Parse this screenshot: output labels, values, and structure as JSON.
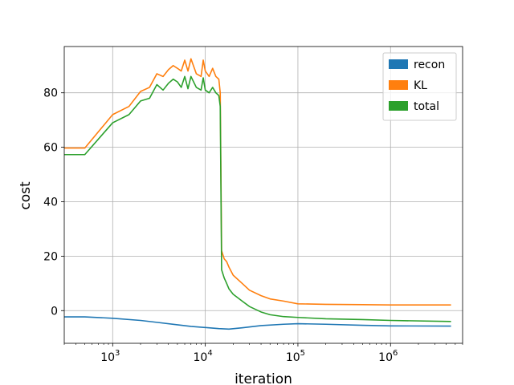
{
  "chart_data": {
    "type": "line",
    "title": "",
    "xlabel": "iteration",
    "ylabel": "cost",
    "xscale": "log",
    "xlim": [
      300,
      6000000
    ],
    "ylim": [
      -12,
      97
    ],
    "grid": true,
    "legend_position": "top-right",
    "x_ticks": [
      {
        "value": 1000,
        "base": "10",
        "exp": "3"
      },
      {
        "value": 10000,
        "base": "10",
        "exp": "4"
      },
      {
        "value": 100000,
        "base": "10",
        "exp": "5"
      },
      {
        "value": 1000000,
        "base": "10",
        "exp": "6"
      }
    ],
    "y_ticks": [
      0,
      20,
      40,
      60,
      80
    ],
    "series": [
      {
        "name": "recon",
        "color": "#1f77b4",
        "points": [
          [
            300,
            -2.3
          ],
          [
            500,
            -2.3
          ],
          [
            1000,
            -2.8
          ],
          [
            2000,
            -3.6
          ],
          [
            3000,
            -4.3
          ],
          [
            5000,
            -5.2
          ],
          [
            7000,
            -5.8
          ],
          [
            10000,
            -6.2
          ],
          [
            14000,
            -6.6
          ],
          [
            18000,
            -6.8
          ],
          [
            25000,
            -6.3
          ],
          [
            40000,
            -5.5
          ],
          [
            70000,
            -5.0
          ],
          [
            100000,
            -4.8
          ],
          [
            200000,
            -5.0
          ],
          [
            500000,
            -5.4
          ],
          [
            1000000,
            -5.6
          ],
          [
            4500000,
            -5.7
          ]
        ]
      },
      {
        "name": "KL",
        "color": "#ff7f0e",
        "points": [
          [
            300,
            59.7
          ],
          [
            500,
            59.7
          ],
          [
            1000,
            72
          ],
          [
            1500,
            75
          ],
          [
            2000,
            80.5
          ],
          [
            2500,
            82
          ],
          [
            3000,
            87
          ],
          [
            3500,
            86
          ],
          [
            4000,
            88.5
          ],
          [
            4500,
            90
          ],
          [
            5000,
            89
          ],
          [
            5500,
            88
          ],
          [
            6000,
            92
          ],
          [
            6500,
            88
          ],
          [
            7000,
            92.5
          ],
          [
            8000,
            87
          ],
          [
            9000,
            86
          ],
          [
            9500,
            92
          ],
          [
            10000,
            88
          ],
          [
            11000,
            86
          ],
          [
            12000,
            89
          ],
          [
            13000,
            86
          ],
          [
            14000,
            85
          ],
          [
            14500,
            80
          ],
          [
            15000,
            22
          ],
          [
            16000,
            19
          ],
          [
            17000,
            18
          ],
          [
            18000,
            16
          ],
          [
            20000,
            13
          ],
          [
            25000,
            10
          ],
          [
            30000,
            7.5
          ],
          [
            40000,
            5.5
          ],
          [
            50000,
            4.3
          ],
          [
            70000,
            3.5
          ],
          [
            100000,
            2.5
          ],
          [
            200000,
            2.3
          ],
          [
            500000,
            2.2
          ],
          [
            1000000,
            2.1
          ],
          [
            4500000,
            2.1
          ]
        ]
      },
      {
        "name": "total",
        "color": "#2ca02c",
        "points": [
          [
            300,
            57.3
          ],
          [
            500,
            57.3
          ],
          [
            1000,
            69
          ],
          [
            1500,
            72
          ],
          [
            2000,
            77
          ],
          [
            2500,
            78
          ],
          [
            3000,
            83
          ],
          [
            3500,
            81
          ],
          [
            4000,
            83.5
          ],
          [
            4500,
            85
          ],
          [
            5000,
            84
          ],
          [
            5500,
            82
          ],
          [
            6000,
            86
          ],
          [
            6500,
            81.5
          ],
          [
            7000,
            86
          ],
          [
            8000,
            82
          ],
          [
            9000,
            81
          ],
          [
            9500,
            85.5
          ],
          [
            10000,
            81
          ],
          [
            11000,
            80
          ],
          [
            12000,
            82
          ],
          [
            13000,
            80
          ],
          [
            14000,
            79
          ],
          [
            14500,
            75
          ],
          [
            15000,
            15
          ],
          [
            16000,
            12
          ],
          [
            17000,
            10
          ],
          [
            18000,
            8
          ],
          [
            20000,
            6
          ],
          [
            25000,
            3.5
          ],
          [
            30000,
            1.5
          ],
          [
            40000,
            -0.5
          ],
          [
            50000,
            -1.5
          ],
          [
            70000,
            -2.2
          ],
          [
            100000,
            -2.5
          ],
          [
            200000,
            -3
          ],
          [
            500000,
            -3.3
          ],
          [
            1000000,
            -3.6
          ],
          [
            4500000,
            -4
          ]
        ]
      }
    ]
  }
}
